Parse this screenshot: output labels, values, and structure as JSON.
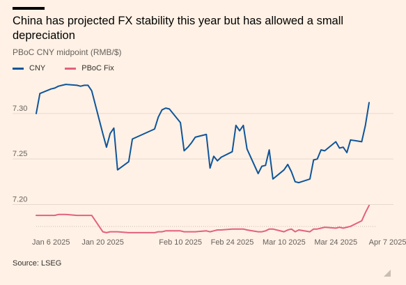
{
  "header": {
    "title": "China has projected FX stability this year but has allowed a small depreciation",
    "subtitle": "PBoC CNY midpoint (RMB/$)"
  },
  "source": "Source: LSEG",
  "colors": {
    "background": "#fff1e5",
    "cny": "#0f5499",
    "pboc_fix": "#e3617c",
    "grid": "#e6d9ce"
  },
  "chart_data": {
    "type": "line",
    "title": "China has projected FX stability this year but has allowed a small depreciation",
    "subtitle": "PBoC CNY midpoint (RMB/$)",
    "xlabel": "",
    "ylabel": "",
    "x_tick_labels": [
      "Jan 6 2025",
      "Jan 20 2025",
      "Feb 10 2025",
      "Feb 24 2025",
      "Mar 10 2025",
      "Mar 24 2025",
      "Apr 7 2025"
    ],
    "x_tick_dates": [
      "2025-01-06",
      "2025-01-20",
      "2025-02-10",
      "2025-02-24",
      "2025-03-10",
      "2025-03-24",
      "2025-04-07"
    ],
    "y_ticks": [
      7.2,
      7.25,
      7.3
    ],
    "y_tick_labels": [
      "7.20",
      "7.25",
      "7.30"
    ],
    "ylim": [
      7.172,
      7.339
    ],
    "grid": true,
    "legend_position": "top-left",
    "series": [
      {
        "name": "CNY",
        "color": "#0f5499",
        "points": [
          [
            "2025-01-02",
            7.3
          ],
          [
            "2025-01-03",
            7.322
          ],
          [
            "2025-01-06",
            7.327
          ],
          [
            "2025-01-07",
            7.328
          ],
          [
            "2025-01-08",
            7.33
          ],
          [
            "2025-01-09",
            7.331
          ],
          [
            "2025-01-10",
            7.332
          ],
          [
            "2025-01-13",
            7.331
          ],
          [
            "2025-01-14",
            7.33
          ],
          [
            "2025-01-15",
            7.331
          ],
          [
            "2025-01-16",
            7.331
          ],
          [
            "2025-01-17",
            7.325
          ],
          [
            "2025-01-20",
            7.278
          ],
          [
            "2025-01-21",
            7.263
          ],
          [
            "2025-01-22",
            7.278
          ],
          [
            "2025-01-23",
            7.284
          ],
          [
            "2025-01-24",
            7.238
          ],
          [
            "2025-01-27",
            7.247
          ],
          [
            "2025-01-28",
            7.272
          ],
          [
            "2025-02-03",
            7.283
          ],
          [
            "2025-02-04",
            7.296
          ],
          [
            "2025-02-05",
            7.304
          ],
          [
            "2025-02-06",
            7.306
          ],
          [
            "2025-02-07",
            7.305
          ],
          [
            "2025-02-10",
            7.29
          ],
          [
            "2025-02-11",
            7.259
          ],
          [
            "2025-02-12",
            7.263
          ],
          [
            "2025-02-13",
            7.268
          ],
          [
            "2025-02-14",
            7.274
          ],
          [
            "2025-02-17",
            7.277
          ],
          [
            "2025-02-18",
            7.24
          ],
          [
            "2025-02-19",
            7.253
          ],
          [
            "2025-02-20",
            7.248
          ],
          [
            "2025-02-21",
            7.252
          ],
          [
            "2025-02-24",
            7.258
          ],
          [
            "2025-02-25",
            7.287
          ],
          [
            "2025-02-26",
            7.281
          ],
          [
            "2025-02-27",
            7.287
          ],
          [
            "2025-02-28",
            7.261
          ],
          [
            "2025-03-03",
            7.234
          ],
          [
            "2025-03-04",
            7.242
          ],
          [
            "2025-03-05",
            7.243
          ],
          [
            "2025-03-06",
            7.26
          ],
          [
            "2025-03-07",
            7.228
          ],
          [
            "2025-03-10",
            7.238
          ],
          [
            "2025-03-11",
            7.244
          ],
          [
            "2025-03-12",
            7.236
          ],
          [
            "2025-03-13",
            7.225
          ],
          [
            "2025-03-14",
            7.224
          ],
          [
            "2025-03-17",
            7.228
          ],
          [
            "2025-03-18",
            7.249
          ],
          [
            "2025-03-19",
            7.25
          ],
          [
            "2025-03-20",
            7.26
          ],
          [
            "2025-03-21",
            7.259
          ],
          [
            "2025-03-24",
            7.269
          ],
          [
            "2025-03-25",
            7.262
          ],
          [
            "2025-03-26",
            7.263
          ],
          [
            "2025-03-27",
            7.257
          ],
          [
            "2025-03-28",
            7.271
          ],
          [
            "2025-03-31",
            7.269
          ],
          [
            "2025-04-01",
            7.287
          ],
          [
            "2025-04-02",
            7.312
          ]
        ]
      },
      {
        "name": "PBoC Fix",
        "color": "#e3617c",
        "points": [
          [
            "2025-01-02",
            7.188
          ],
          [
            "2025-01-03",
            7.188
          ],
          [
            "2025-01-06",
            7.188
          ],
          [
            "2025-01-07",
            7.188
          ],
          [
            "2025-01-08",
            7.189
          ],
          [
            "2025-01-09",
            7.189
          ],
          [
            "2025-01-10",
            7.189
          ],
          [
            "2025-01-13",
            7.188
          ],
          [
            "2025-01-14",
            7.188
          ],
          [
            "2025-01-15",
            7.188
          ],
          [
            "2025-01-16",
            7.188
          ],
          [
            "2025-01-17",
            7.188
          ],
          [
            "2025-01-20",
            7.17
          ],
          [
            "2025-01-21",
            7.169
          ],
          [
            "2025-01-22",
            7.17
          ],
          [
            "2025-01-23",
            7.17
          ],
          [
            "2025-01-24",
            7.17
          ],
          [
            "2025-01-27",
            7.169
          ],
          [
            "2025-01-28",
            7.169
          ],
          [
            "2025-02-03",
            7.169
          ],
          [
            "2025-02-04",
            7.17
          ],
          [
            "2025-02-05",
            7.17
          ],
          [
            "2025-02-06",
            7.171
          ],
          [
            "2025-02-07",
            7.171
          ],
          [
            "2025-02-10",
            7.171
          ],
          [
            "2025-02-11",
            7.17
          ],
          [
            "2025-02-12",
            7.17
          ],
          [
            "2025-02-13",
            7.17
          ],
          [
            "2025-02-14",
            7.17
          ],
          [
            "2025-02-17",
            7.171
          ],
          [
            "2025-02-18",
            7.17
          ],
          [
            "2025-02-19",
            7.171
          ],
          [
            "2025-02-20",
            7.172
          ],
          [
            "2025-02-21",
            7.172
          ],
          [
            "2025-02-24",
            7.173
          ],
          [
            "2025-02-25",
            7.173
          ],
          [
            "2025-02-26",
            7.173
          ],
          [
            "2025-02-27",
            7.173
          ],
          [
            "2025-02-28",
            7.172
          ],
          [
            "2025-03-03",
            7.17
          ],
          [
            "2025-03-04",
            7.17
          ],
          [
            "2025-03-05",
            7.171
          ],
          [
            "2025-03-06",
            7.173
          ],
          [
            "2025-03-07",
            7.173
          ],
          [
            "2025-03-10",
            7.17
          ],
          [
            "2025-03-11",
            7.172
          ],
          [
            "2025-03-12",
            7.173
          ],
          [
            "2025-03-13",
            7.17
          ],
          [
            "2025-03-14",
            7.172
          ],
          [
            "2025-03-17",
            7.17
          ],
          [
            "2025-03-18",
            7.173
          ],
          [
            "2025-03-19",
            7.173
          ],
          [
            "2025-03-20",
            7.174
          ],
          [
            "2025-03-21",
            7.175
          ],
          [
            "2025-03-24",
            7.174
          ],
          [
            "2025-03-25",
            7.175
          ],
          [
            "2025-03-26",
            7.174
          ],
          [
            "2025-03-27",
            7.175
          ],
          [
            "2025-03-28",
            7.176
          ],
          [
            "2025-03-31",
            7.182
          ],
          [
            "2025-04-01",
            7.191
          ],
          [
            "2025-04-02",
            7.199
          ]
        ]
      }
    ]
  }
}
